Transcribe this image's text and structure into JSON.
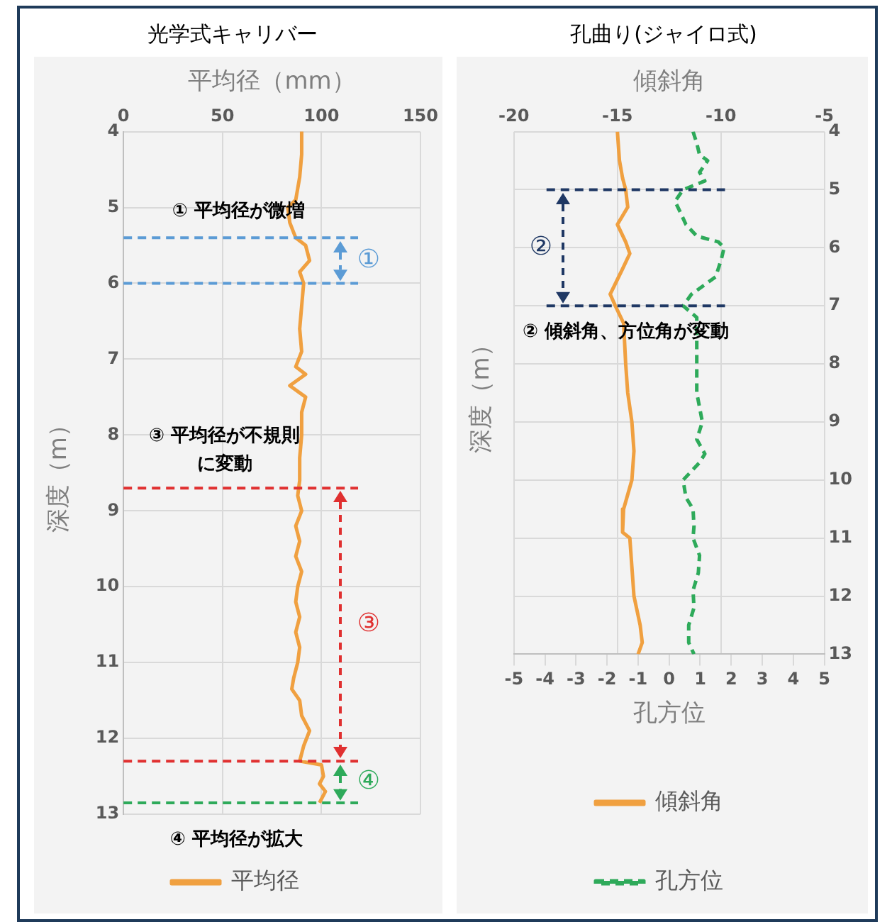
{
  "chart_data": [
    {
      "type": "line",
      "title": "光学式キャリバー",
      "xlabel": "平均径（mm）",
      "ylabel": "深度（m）",
      "xlim": [
        0,
        150
      ],
      "xticks": [
        0,
        50,
        100,
        150
      ],
      "ylim": [
        13,
        4
      ],
      "yticks": [
        4,
        5,
        6,
        7,
        8,
        9,
        10,
        11,
        12,
        13
      ],
      "grid": true,
      "legend": "bottom",
      "marker": "none",
      "series": [
        {
          "name": "平均径",
          "color": "#f0a040",
          "line_style": "solid",
          "values": [
            4.0,
            4.3,
            4.6,
            4.9,
            5.0,
            5.2,
            5.4,
            5.5,
            5.7,
            5.85,
            6.0,
            6.3,
            6.6,
            6.9,
            7.1,
            7.2,
            7.35,
            7.5,
            7.7,
            8.0,
            8.3,
            8.6,
            8.8,
            9.0,
            9.2,
            9.4,
            9.6,
            9.8,
            10.0,
            10.2,
            10.4,
            10.6,
            10.8,
            11.0,
            11.2,
            11.35,
            11.5,
            11.7,
            11.9,
            12.1,
            12.3,
            12.35,
            12.5,
            12.6,
            12.7,
            12.85
          ],
          "x": [
            90,
            90,
            89,
            87,
            83,
            84,
            87,
            92,
            94,
            89,
            91,
            90,
            89,
            90,
            87,
            92,
            84,
            92,
            90,
            90,
            89,
            89,
            88,
            90,
            87,
            89,
            87,
            90,
            88,
            87,
            89,
            87,
            89,
            88,
            86,
            85,
            89,
            90,
            94,
            91,
            89,
            100,
            101,
            99,
            102,
            99
          ]
        }
      ],
      "ref_lines": [
        {
          "axis": "y",
          "value": 5.4,
          "label": "①",
          "color": "#5b9bd5",
          "line_style": "dashed"
        },
        {
          "axis": "y",
          "value": 6.0,
          "label": null,
          "color": "#5b9bd5",
          "line_style": "dashed"
        },
        {
          "axis": "y",
          "value": 8.7,
          "label": "③",
          "color": "#e03030",
          "line_style": "dashed"
        },
        {
          "axis": "y",
          "value": 12.3,
          "label": null,
          "color": "#e03030",
          "line_style": "dashed"
        },
        {
          "axis": "y",
          "value": 12.85,
          "label": "④",
          "color": "#2eaa5a",
          "line_style": "dashed"
        }
      ],
      "annotations": [
        "① 平均径が微増",
        "③ 平均径が不規則に変動",
        "④ 平均径が拡大"
      ]
    },
    {
      "type": "line",
      "title": "孔曲り(ジャイロ式)",
      "x2label": "傾斜角",
      "xlabel": "孔方位",
      "ylabel": "深度（m）",
      "x2lim": [
        -20,
        -5
      ],
      "x2ticks": [
        -20,
        -15,
        -10,
        -5
      ],
      "xlim": [
        -5,
        5
      ],
      "xticks": [
        -5,
        -4,
        -3,
        -2,
        -1,
        0,
        1,
        2,
        3,
        4,
        5
      ],
      "ylim": [
        13,
        4
      ],
      "yticks": [
        4,
        5,
        6,
        7,
        8,
        9,
        10,
        11,
        12,
        13
      ],
      "grid": true,
      "legend": "bottom",
      "marker": "none",
      "series": [
        {
          "name": "傾斜角",
          "color": "#f0a040",
          "axis": "x2",
          "line_style": "solid",
          "values": [
            4.0,
            4.5,
            4.8,
            5.0,
            5.3,
            5.6,
            5.9,
            6.1,
            6.4,
            6.8,
            7.0,
            7.3,
            8.0,
            8.5,
            9.0,
            9.5,
            10.0,
            10.5,
            10.9,
            11.0,
            11.5,
            12.0,
            12.5,
            12.8,
            13.0
          ],
          "x": [
            -15.0,
            -14.9,
            -14.75,
            -14.6,
            -14.5,
            -15.0,
            -14.6,
            -14.4,
            -14.8,
            -15.35,
            -15.1,
            -14.7,
            -14.6,
            -14.5,
            -14.3,
            -14.2,
            -14.3,
            -14.7,
            -14.75,
            -14.4,
            -14.3,
            -14.2,
            -13.9,
            -13.8,
            -14.0
          ]
        },
        {
          "name": "孔方位",
          "color": "#2eaa5a",
          "line_style": "dashed",
          "values": [
            4.0,
            4.2,
            4.4,
            4.5,
            4.7,
            4.85,
            5.0,
            5.2,
            5.4,
            5.6,
            5.8,
            5.9,
            6.0,
            6.2,
            6.5,
            6.8,
            7.0,
            7.2,
            7.6,
            8.0,
            8.5,
            9.0,
            9.3,
            9.55,
            9.7,
            10.0,
            10.3,
            10.5,
            10.8,
            11.0,
            11.3,
            11.6,
            11.9,
            12.2,
            12.5,
            12.8,
            13.0
          ],
          "x": [
            0.77,
            0.89,
            0.98,
            1.24,
            0.98,
            1.15,
            0.45,
            0.19,
            0.37,
            0.54,
            0.89,
            1.59,
            1.77,
            1.68,
            1.5,
            0.72,
            0.45,
            0.89,
            0.89,
            0.89,
            0.89,
            1.07,
            0.89,
            1.15,
            0.98,
            0.45,
            0.54,
            0.77,
            0.8,
            0.77,
            0.98,
            0.94,
            0.77,
            0.8,
            0.63,
            0.63,
            0.8
          ]
        }
      ],
      "ref_lines": [
        {
          "axis": "y",
          "value": 5.0,
          "label": "②",
          "color": "#1f3864",
          "line_style": "dashed"
        },
        {
          "axis": "y",
          "value": 7.0,
          "label": null,
          "color": "#1f3864",
          "line_style": "dashed"
        }
      ],
      "annotations": [
        "② 傾斜角、方位角が変動"
      ]
    }
  ]
}
